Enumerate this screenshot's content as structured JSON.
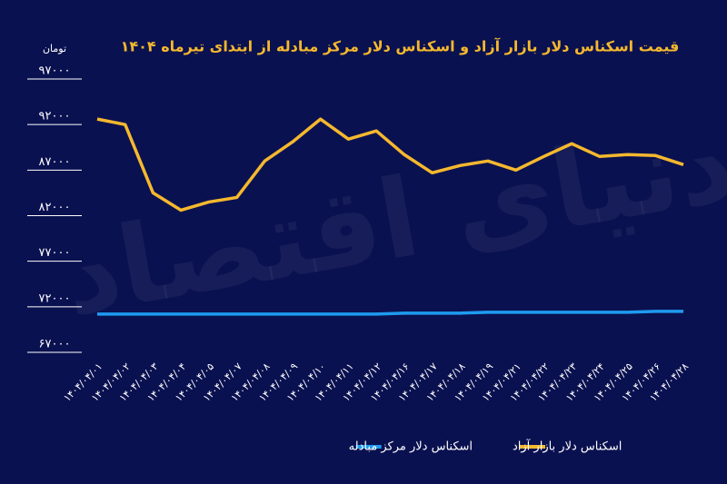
{
  "chart_data": {
    "type": "line",
    "title": "قیمت اسکناس دلار بازار آزاد و اسکناس دلار مرکز مبادله از ابتدای تیرماه ۱۴۰۴",
    "y_unit": "تومان",
    "watermark": "دنیای اقتصاد",
    "categories": [
      "۱۴۰۴/۰۴/۰۱",
      "۱۴۰۴/۰۴/۰۲",
      "۱۴۰۴/۰۴/۰۳",
      "۱۴۰۴/۰۴/۰۴",
      "۱۴۰۴/۰۴/۰۵",
      "۱۴۰۴/۰۴/۰۷",
      "۱۴۰۴/۰۴/۰۸",
      "۱۴۰۴/۰۴/۰۹",
      "۱۴۰۴/۰۴/۱۰",
      "۱۴۰۴/۰۴/۱۱",
      "۱۴۰۴/۰۴/۱۲",
      "۱۴۰۴/۰۴/۱۶",
      "۱۴۰۴/۰۴/۱۷",
      "۱۴۰۴/۰۴/۱۸",
      "۱۴۰۴/۰۴/۱۹",
      "۱۴۰۴/۰۴/۲۱",
      "۱۴۰۴/۰۴/۲۲",
      "۱۴۰۴/۰۴/۲۳",
      "۱۴۰۴/۰۴/۲۴",
      "۱۴۰۴/۰۴/۲۵",
      "۱۴۰۴/۰۴/۲۶",
      "۱۴۰۴/۰۴/۲۸"
    ],
    "series": [
      {
        "name": "اسکناس دلار بازار آزاد",
        "color": "#f5b82e",
        "values": [
          92600,
          92000,
          84500,
          82600,
          83500,
          84000,
          88000,
          90100,
          92600,
          90400,
          91300,
          88700,
          86700,
          87500,
          88000,
          87000,
          88500,
          89900,
          88500,
          88700,
          88600,
          87600
        ]
      },
      {
        "name": "اسکناس دلار مرکز مبادله",
        "color": "#1e9bf0",
        "values": [
          71200,
          71200,
          71200,
          71200,
          71200,
          71200,
          71200,
          71200,
          71200,
          71200,
          71200,
          71300,
          71300,
          71300,
          71400,
          71400,
          71400,
          71400,
          71400,
          71400,
          71500,
          71500
        ]
      }
    ],
    "ylim": [
      67000,
      97000
    ],
    "yticks": [
      {
        "value": 67000,
        "label": "۶۷۰۰۰"
      },
      {
        "value": 72000,
        "label": "۷۲۰۰۰"
      },
      {
        "value": 77000,
        "label": "۷۷۰۰۰"
      },
      {
        "value": 82000,
        "label": "۸۲۰۰۰"
      },
      {
        "value": 87000,
        "label": "۸۷۰۰۰"
      },
      {
        "value": 92000,
        "label": "۹۲۰۰۰"
      },
      {
        "value": 97000,
        "label": "۹۷۰۰۰"
      }
    ],
    "grid": true
  }
}
